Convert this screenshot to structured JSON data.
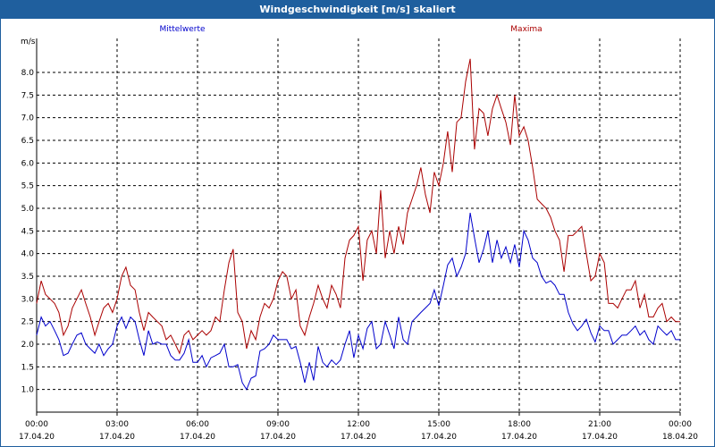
{
  "window": {
    "title": "Windgeschwindigkeit [m/s] skaliert"
  },
  "colors": {
    "titlebar": "#1f5f9e",
    "mean": "#0000cc",
    "max": "#aa0000",
    "grid": "#000000"
  },
  "chart_data": {
    "type": "line",
    "title": "Windgeschwindigkeit [m/s] skaliert",
    "ylabel": "m/s",
    "xlabel": "",
    "ylim": [
      0.5,
      8.75
    ],
    "xlim_hours": [
      0,
      24
    ],
    "grid": true,
    "legend_placement": "top",
    "y_ticks": [
      1.0,
      1.5,
      2.0,
      2.5,
      3.0,
      3.5,
      4.0,
      4.5,
      5.0,
      5.5,
      6.0,
      6.5,
      7.0,
      7.5,
      8.0
    ],
    "y_tick_labels": [
      "1.0",
      "1.5",
      "2.0",
      "2.5",
      "3.0",
      "3.5",
      "4.0",
      "4.5",
      "5.0",
      "5.5",
      "6.0",
      "6.5",
      "7.0",
      "7.5",
      "8.0"
    ],
    "x_ticks": [
      {
        "time": "00:00",
        "date": "17.04.20"
      },
      {
        "time": "03:00",
        "date": "17.04.20"
      },
      {
        "time": "06:00",
        "date": "17.04.20"
      },
      {
        "time": "09:00",
        "date": "17.04.20"
      },
      {
        "time": "12:00",
        "date": "17.04.20"
      },
      {
        "time": "15:00",
        "date": "17.04.20"
      },
      {
        "time": "18:00",
        "date": "17.04.20"
      },
      {
        "time": "21:00",
        "date": "17.04.20"
      },
      {
        "time": "00:00",
        "date": "18.04.20"
      }
    ],
    "series": [
      {
        "name": "Mittelwerte",
        "color": "#0000cc",
        "points": [
          [
            0.0,
            2.2
          ],
          [
            0.17,
            2.6
          ],
          [
            0.33,
            2.4
          ],
          [
            0.5,
            2.5
          ],
          [
            0.67,
            2.3
          ],
          [
            0.83,
            2.1
          ],
          [
            1.0,
            1.75
          ],
          [
            1.17,
            1.8
          ],
          [
            1.33,
            2.0
          ],
          [
            1.5,
            2.2
          ],
          [
            1.67,
            2.25
          ],
          [
            1.83,
            2.0
          ],
          [
            2.0,
            1.9
          ],
          [
            2.17,
            1.8
          ],
          [
            2.33,
            2.0
          ],
          [
            2.5,
            1.75
          ],
          [
            2.67,
            1.9
          ],
          [
            2.83,
            2.0
          ],
          [
            3.0,
            2.4
          ],
          [
            3.17,
            2.6
          ],
          [
            3.33,
            2.35
          ],
          [
            3.5,
            2.6
          ],
          [
            3.67,
            2.5
          ],
          [
            3.83,
            2.1
          ],
          [
            4.0,
            1.75
          ],
          [
            4.17,
            2.3
          ],
          [
            4.33,
            2.0
          ],
          [
            4.5,
            2.05
          ],
          [
            4.67,
            2.0
          ],
          [
            4.83,
            2.0
          ],
          [
            5.0,
            1.75
          ],
          [
            5.17,
            1.65
          ],
          [
            5.33,
            1.65
          ],
          [
            5.5,
            1.8
          ],
          [
            5.67,
            2.1
          ],
          [
            5.83,
            1.6
          ],
          [
            6.0,
            1.6
          ],
          [
            6.17,
            1.75
          ],
          [
            6.33,
            1.5
          ],
          [
            6.5,
            1.7
          ],
          [
            6.67,
            1.75
          ],
          [
            6.83,
            1.8
          ],
          [
            7.0,
            2.0
          ],
          [
            7.17,
            1.5
          ],
          [
            7.33,
            1.5
          ],
          [
            7.5,
            1.55
          ],
          [
            7.67,
            1.15
          ],
          [
            7.83,
            1.0
          ],
          [
            8.0,
            1.25
          ],
          [
            8.17,
            1.3
          ],
          [
            8.33,
            1.85
          ],
          [
            8.5,
            1.9
          ],
          [
            8.67,
            2.0
          ],
          [
            8.83,
            2.2
          ],
          [
            9.0,
            2.1
          ],
          [
            9.17,
            2.1
          ],
          [
            9.33,
            2.1
          ],
          [
            9.5,
            1.9
          ],
          [
            9.67,
            1.95
          ],
          [
            9.83,
            1.6
          ],
          [
            10.0,
            1.15
          ],
          [
            10.17,
            1.6
          ],
          [
            10.33,
            1.2
          ],
          [
            10.5,
            1.95
          ],
          [
            10.67,
            1.6
          ],
          [
            10.83,
            1.5
          ],
          [
            11.0,
            1.65
          ],
          [
            11.17,
            1.55
          ],
          [
            11.33,
            1.65
          ],
          [
            11.5,
            2.0
          ],
          [
            11.67,
            2.3
          ],
          [
            11.83,
            1.7
          ],
          [
            12.0,
            2.2
          ],
          [
            12.17,
            1.9
          ],
          [
            12.33,
            2.35
          ],
          [
            12.5,
            2.5
          ],
          [
            12.67,
            1.9
          ],
          [
            12.83,
            2.0
          ],
          [
            13.0,
            2.5
          ],
          [
            13.17,
            2.2
          ],
          [
            13.33,
            1.9
          ],
          [
            13.5,
            2.6
          ],
          [
            13.67,
            2.1
          ],
          [
            13.83,
            2.0
          ],
          [
            14.0,
            2.5
          ],
          [
            14.17,
            2.6
          ],
          [
            14.33,
            2.7
          ],
          [
            14.5,
            2.8
          ],
          [
            14.67,
            2.9
          ],
          [
            14.83,
            3.2
          ],
          [
            15.0,
            2.85
          ],
          [
            15.17,
            3.3
          ],
          [
            15.33,
            3.75
          ],
          [
            15.5,
            3.9
          ],
          [
            15.67,
            3.5
          ],
          [
            15.83,
            3.7
          ],
          [
            16.0,
            4.0
          ],
          [
            16.17,
            4.9
          ],
          [
            16.33,
            4.35
          ],
          [
            16.5,
            3.8
          ],
          [
            16.67,
            4.1
          ],
          [
            16.83,
            4.5
          ],
          [
            17.0,
            3.8
          ],
          [
            17.17,
            4.3
          ],
          [
            17.33,
            3.9
          ],
          [
            17.5,
            4.15
          ],
          [
            17.67,
            3.8
          ],
          [
            17.83,
            4.2
          ],
          [
            18.0,
            3.7
          ],
          [
            18.17,
            4.5
          ],
          [
            18.33,
            4.3
          ],
          [
            18.5,
            3.9
          ],
          [
            18.67,
            3.8
          ],
          [
            18.83,
            3.5
          ],
          [
            19.0,
            3.35
          ],
          [
            19.17,
            3.4
          ],
          [
            19.33,
            3.3
          ],
          [
            19.5,
            3.1
          ],
          [
            19.67,
            3.1
          ],
          [
            19.83,
            2.7
          ],
          [
            20.0,
            2.45
          ],
          [
            20.17,
            2.3
          ],
          [
            20.33,
            2.4
          ],
          [
            20.5,
            2.55
          ],
          [
            20.67,
            2.25
          ],
          [
            20.83,
            2.05
          ],
          [
            21.0,
            2.4
          ],
          [
            21.17,
            2.3
          ],
          [
            21.33,
            2.3
          ],
          [
            21.5,
            2.0
          ],
          [
            21.67,
            2.1
          ],
          [
            21.83,
            2.2
          ],
          [
            22.0,
            2.2
          ],
          [
            22.17,
            2.3
          ],
          [
            22.33,
            2.4
          ],
          [
            22.5,
            2.2
          ],
          [
            22.67,
            2.3
          ],
          [
            22.83,
            2.1
          ],
          [
            23.0,
            2.0
          ],
          [
            23.17,
            2.4
          ],
          [
            23.33,
            2.3
          ],
          [
            23.5,
            2.2
          ],
          [
            23.67,
            2.3
          ],
          [
            23.83,
            2.1
          ],
          [
            24.0,
            2.1
          ]
        ]
      },
      {
        "name": "Maxima",
        "color": "#aa0000",
        "points": [
          [
            0.0,
            2.9
          ],
          [
            0.17,
            3.4
          ],
          [
            0.33,
            3.1
          ],
          [
            0.5,
            3.0
          ],
          [
            0.67,
            2.9
          ],
          [
            0.83,
            2.7
          ],
          [
            1.0,
            2.2
          ],
          [
            1.17,
            2.4
          ],
          [
            1.33,
            2.8
          ],
          [
            1.5,
            3.0
          ],
          [
            1.67,
            3.2
          ],
          [
            1.83,
            2.9
          ],
          [
            2.0,
            2.6
          ],
          [
            2.17,
            2.2
          ],
          [
            2.33,
            2.5
          ],
          [
            2.5,
            2.8
          ],
          [
            2.67,
            2.9
          ],
          [
            2.83,
            2.7
          ],
          [
            3.0,
            3.0
          ],
          [
            3.17,
            3.5
          ],
          [
            3.33,
            3.7
          ],
          [
            3.5,
            3.3
          ],
          [
            3.67,
            3.2
          ],
          [
            3.83,
            2.7
          ],
          [
            4.0,
            2.3
          ],
          [
            4.17,
            2.7
          ],
          [
            4.33,
            2.6
          ],
          [
            4.5,
            2.5
          ],
          [
            4.67,
            2.4
          ],
          [
            4.83,
            2.1
          ],
          [
            5.0,
            2.2
          ],
          [
            5.17,
            2.0
          ],
          [
            5.33,
            1.8
          ],
          [
            5.5,
            2.2
          ],
          [
            5.67,
            2.3
          ],
          [
            5.83,
            2.1
          ],
          [
            6.0,
            2.2
          ],
          [
            6.17,
            2.3
          ],
          [
            6.33,
            2.2
          ],
          [
            6.5,
            2.3
          ],
          [
            6.67,
            2.6
          ],
          [
            6.83,
            2.5
          ],
          [
            7.0,
            3.2
          ],
          [
            7.17,
            3.8
          ],
          [
            7.33,
            4.1
          ],
          [
            7.5,
            2.7
          ],
          [
            7.67,
            2.5
          ],
          [
            7.83,
            1.9
          ],
          [
            8.0,
            2.3
          ],
          [
            8.17,
            2.1
          ],
          [
            8.33,
            2.6
          ],
          [
            8.5,
            2.9
          ],
          [
            8.67,
            2.8
          ],
          [
            8.83,
            3.0
          ],
          [
            9.0,
            3.4
          ],
          [
            9.17,
            3.6
          ],
          [
            9.33,
            3.5
          ],
          [
            9.5,
            3.0
          ],
          [
            9.67,
            3.2
          ],
          [
            9.83,
            2.4
          ],
          [
            10.0,
            2.2
          ],
          [
            10.17,
            2.6
          ],
          [
            10.33,
            2.9
          ],
          [
            10.5,
            3.3
          ],
          [
            10.67,
            3.0
          ],
          [
            10.83,
            2.8
          ],
          [
            11.0,
            3.3
          ],
          [
            11.17,
            3.1
          ],
          [
            11.33,
            2.8
          ],
          [
            11.5,
            3.9
          ],
          [
            11.67,
            4.3
          ],
          [
            11.83,
            4.4
          ],
          [
            12.0,
            4.6
          ],
          [
            12.17,
            3.4
          ],
          [
            12.33,
            4.3
          ],
          [
            12.5,
            4.5
          ],
          [
            12.67,
            4.0
          ],
          [
            12.83,
            5.4
          ],
          [
            13.0,
            3.9
          ],
          [
            13.17,
            4.5
          ],
          [
            13.33,
            4.0
          ],
          [
            13.5,
            4.6
          ],
          [
            13.67,
            4.2
          ],
          [
            13.83,
            4.9
          ],
          [
            14.0,
            5.2
          ],
          [
            14.17,
            5.5
          ],
          [
            14.33,
            5.9
          ],
          [
            14.5,
            5.3
          ],
          [
            14.67,
            4.9
          ],
          [
            14.83,
            5.8
          ],
          [
            15.0,
            5.5
          ],
          [
            15.17,
            6.0
          ],
          [
            15.33,
            6.7
          ],
          [
            15.5,
            5.8
          ],
          [
            15.67,
            6.9
          ],
          [
            15.83,
            7.0
          ],
          [
            16.0,
            7.8
          ],
          [
            16.17,
            8.3
          ],
          [
            16.33,
            6.3
          ],
          [
            16.5,
            7.2
          ],
          [
            16.67,
            7.1
          ],
          [
            16.83,
            6.6
          ],
          [
            17.0,
            7.2
          ],
          [
            17.17,
            7.5
          ],
          [
            17.33,
            7.2
          ],
          [
            17.5,
            6.9
          ],
          [
            17.67,
            6.4
          ],
          [
            17.83,
            7.5
          ],
          [
            18.0,
            6.6
          ],
          [
            18.17,
            6.8
          ],
          [
            18.33,
            6.5
          ],
          [
            18.5,
            5.9
          ],
          [
            18.67,
            5.2
          ],
          [
            18.83,
            5.1
          ],
          [
            19.0,
            5.0
          ],
          [
            19.17,
            4.8
          ],
          [
            19.33,
            4.5
          ],
          [
            19.5,
            4.3
          ],
          [
            19.67,
            3.6
          ],
          [
            19.83,
            4.4
          ],
          [
            20.0,
            4.4
          ],
          [
            20.17,
            4.5
          ],
          [
            20.33,
            4.6
          ],
          [
            20.5,
            4.0
          ],
          [
            20.67,
            3.4
          ],
          [
            20.83,
            3.5
          ],
          [
            21.0,
            4.0
          ],
          [
            21.17,
            3.8
          ],
          [
            21.33,
            2.9
          ],
          [
            21.5,
            2.9
          ],
          [
            21.67,
            2.8
          ],
          [
            21.83,
            3.0
          ],
          [
            22.0,
            3.2
          ],
          [
            22.17,
            3.2
          ],
          [
            22.33,
            3.4
          ],
          [
            22.5,
            2.8
          ],
          [
            22.67,
            3.1
          ],
          [
            22.83,
            2.6
          ],
          [
            23.0,
            2.6
          ],
          [
            23.17,
            2.8
          ],
          [
            23.33,
            2.9
          ],
          [
            23.5,
            2.5
          ],
          [
            23.67,
            2.6
          ],
          [
            23.83,
            2.5
          ],
          [
            24.0,
            2.5
          ]
        ]
      }
    ]
  }
}
